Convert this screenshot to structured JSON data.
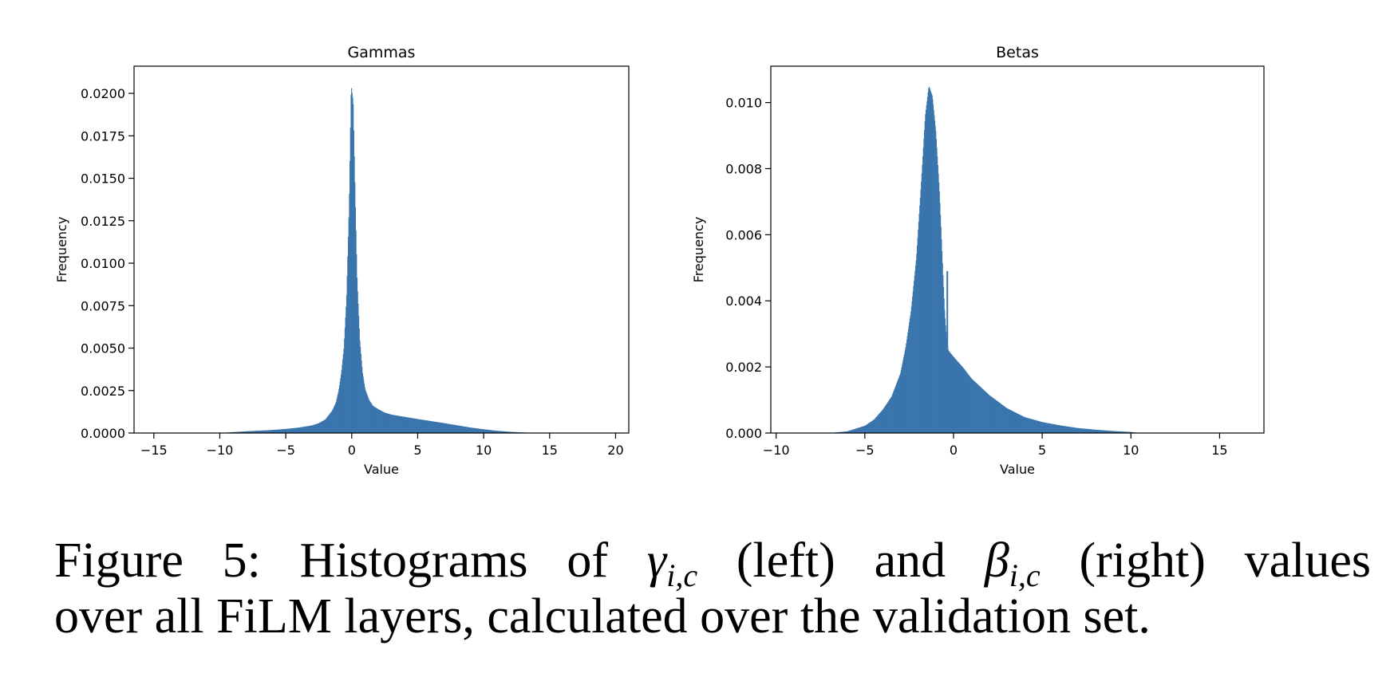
{
  "caption": {
    "prefix": "Figure 5: Histograms of",
    "gamma_symbol": "γ",
    "gamma_sub": "i,c",
    "left_text": "(left) and",
    "beta_symbol": "β",
    "beta_sub": "i,c",
    "right_text": "(right) values",
    "line2": "over all FiLM layers, calculated over the validation set."
  },
  "chart_data": [
    {
      "type": "bar",
      "title": "Gammas",
      "xlabel": "Value",
      "ylabel": "Frequency",
      "xlim": [
        -16.5,
        21
      ],
      "ylim": [
        0,
        0.0216
      ],
      "xticks": [
        -15,
        -10,
        -5,
        0,
        5,
        10,
        15,
        20
      ],
      "xtick_labels": [
        "−15",
        "−10",
        "−5",
        "0",
        "5",
        "10",
        "15",
        "20"
      ],
      "yticks": [
        0,
        0.0025,
        0.005,
        0.0075,
        0.01,
        0.0125,
        0.015,
        0.0175,
        0.02
      ],
      "ytick_labels": [
        "0.0000",
        "0.0025",
        "0.0050",
        "0.0075",
        "0.0100",
        "0.0125",
        "0.0150",
        "0.0175",
        "0.0200"
      ],
      "color": "#3a75ad",
      "grid": false,
      "profile": {
        "x": [
          -10,
          -9,
          -8,
          -7,
          -6,
          -5,
          -4,
          -3,
          -2.5,
          -2,
          -1.5,
          -1.2,
          -1,
          -0.8,
          -0.6,
          -0.4,
          -0.2,
          -0.05,
          0.1,
          0.25,
          0.4,
          0.6,
          0.8,
          1,
          1.3,
          1.6,
          2,
          2.5,
          3,
          4,
          5,
          6,
          7,
          8,
          9,
          10,
          11,
          12,
          13,
          14,
          15
        ],
        "y": [
          0,
          5e-05,
          0.0001,
          0.00014,
          0.00018,
          0.00024,
          0.00032,
          0.00045,
          0.00058,
          0.0008,
          0.0013,
          0.0018,
          0.0025,
          0.0035,
          0.005,
          0.008,
          0.0135,
          0.0205,
          0.0195,
          0.014,
          0.009,
          0.0055,
          0.0036,
          0.0026,
          0.00195,
          0.0016,
          0.0014,
          0.0012,
          0.00108,
          0.00095,
          0.00082,
          0.0007,
          0.00058,
          0.00045,
          0.00032,
          0.00022,
          0.00013,
          7e-05,
          3e-05,
          1e-05,
          0
        ]
      }
    },
    {
      "type": "bar",
      "title": "Betas",
      "xlabel": "Value",
      "ylabel": "Frequency",
      "xlim": [
        -10.3,
        17.5
      ],
      "ylim": [
        0,
        0.0111
      ],
      "xticks": [
        -10,
        -5,
        0,
        5,
        10,
        15
      ],
      "xtick_labels": [
        "−10",
        "−5",
        "0",
        "5",
        "10",
        "15"
      ],
      "yticks": [
        0,
        0.002,
        0.004,
        0.006,
        0.008,
        0.01
      ],
      "ytick_labels": [
        "0.000",
        "0.002",
        "0.004",
        "0.006",
        "0.008",
        "0.010"
      ],
      "color": "#3a75ad",
      "grid": false,
      "profile": {
        "x": [
          -7,
          -6,
          -5,
          -4.5,
          -4,
          -3.5,
          -3,
          -2.7,
          -2.4,
          -2.1,
          -1.8,
          -1.6,
          -1.4,
          -1.2,
          -1,
          -0.8,
          -0.6,
          -0.5,
          -0.4,
          -0.3,
          0,
          0.5,
          1,
          1.5,
          2,
          3,
          4,
          5,
          6,
          7,
          8,
          9,
          10,
          10.5
        ],
        "y": [
          0,
          5e-05,
          0.00022,
          0.0004,
          0.0007,
          0.0011,
          0.0018,
          0.0026,
          0.0037,
          0.0053,
          0.0078,
          0.0096,
          0.0105,
          0.0102,
          0.0091,
          0.0073,
          0.0048,
          0.0036,
          0.0029,
          0.0025,
          0.0023,
          0.002,
          0.00165,
          0.0014,
          0.00115,
          0.00075,
          0.00048,
          0.00033,
          0.00023,
          0.00015,
          0.0001,
          6e-05,
          3e-05,
          0
        ]
      },
      "spike": {
        "x": -0.35,
        "y": 0.0049
      }
    }
  ]
}
